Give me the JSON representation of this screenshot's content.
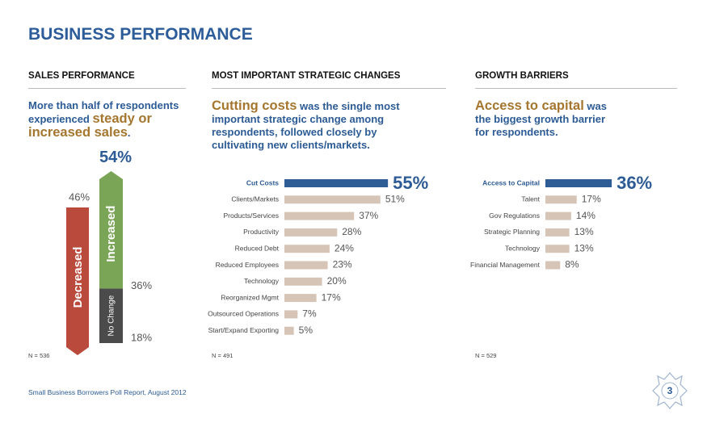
{
  "title": "BUSINESS PERFORMANCE",
  "footer": "Small Business Borrowers Poll Report, August 2012",
  "page_number": "3",
  "chart_data": [
    {
      "type": "arrows",
      "section": "SALES PERFORMANCE",
      "headline": [
        {
          "text": "More than half of respondents experienced ",
          "emphasis": false
        },
        {
          "text": "steady or increased sales",
          "emphasis": true
        },
        {
          "text": ".",
          "emphasis": false
        }
      ],
      "categories": [
        "Decreased",
        "Increased",
        "No Change"
      ],
      "values": [
        46,
        36,
        18
      ],
      "value_labels": [
        "46%",
        "36%",
        "18%"
      ],
      "colors": [
        "#b94a3c",
        "#7aa556",
        "#4b4b4b"
      ],
      "total_label": "54%",
      "note": "N = 536"
    },
    {
      "type": "hbar",
      "section": "MOST IMPORTANT STRATEGIC CHANGES",
      "headline": [
        {
          "text": "Cutting costs",
          "emphasis": true
        },
        {
          "text": " was the single most important strategic change among respondents, followed closely by cultivating new clients/markets.",
          "emphasis": false
        }
      ],
      "categories": [
        "Cut Costs",
        "Clients/Markets",
        "Products/Services",
        "Productivity",
        "Reduced Debt",
        "Reduced Employees",
        "Technology",
        "Reorganized Mgmt",
        "Outsourced Operations",
        "Start/Expand Exporting"
      ],
      "values": [
        55,
        51,
        37,
        28,
        24,
        23,
        20,
        17,
        7,
        5
      ],
      "value_labels": [
        "55%",
        "51%",
        "37%",
        "28%",
        "24%",
        "23%",
        "20%",
        "17%",
        "7%",
        "5%"
      ],
      "color": "#d6c5b6",
      "highlight_color": "#2e5c95",
      "highlight_index": 0,
      "note": "N = 491"
    },
    {
      "type": "hbar",
      "section": "GROWTH BARRIERS",
      "headline": [
        {
          "text": "Access to capital",
          "emphasis": true
        },
        {
          "text": " was the biggest growth barrier for respondents.",
          "emphasis": false
        }
      ],
      "categories": [
        "Access to Capital",
        "Talent",
        "Gov Regulations",
        "Strategic Planning",
        "Technology",
        "Financial Management"
      ],
      "values": [
        36,
        17,
        14,
        13,
        13,
        8
      ],
      "value_labels": [
        "36%",
        "17%",
        "14%",
        "13%",
        "13%",
        "8%"
      ],
      "color": "#d6c5b6",
      "highlight_color": "#2e5c95",
      "highlight_index": 0,
      "note": "N = 529"
    }
  ]
}
